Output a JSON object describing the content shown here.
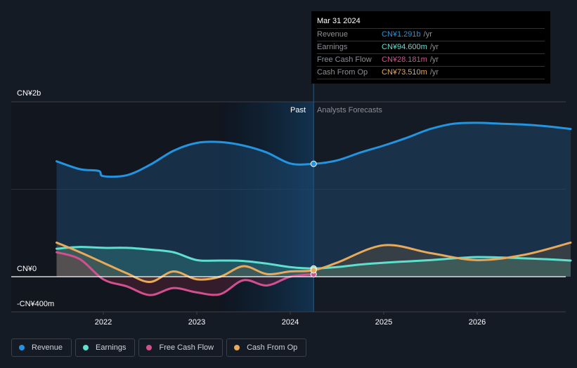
{
  "tooltip": {
    "date": "Mar 31 2024",
    "rows": [
      {
        "label": "Revenue",
        "value": "CN¥1.291b",
        "unit": "/yr",
        "color": "#2394e0"
      },
      {
        "label": "Earnings",
        "value": "CN¥94.600m",
        "unit": "/yr",
        "color": "#5ee0cf"
      },
      {
        "label": "Free Cash Flow",
        "value": "CN¥28.181m",
        "unit": "/yr",
        "color": "#d2508f"
      },
      {
        "label": "Cash From Op",
        "value": "CN¥73.510m",
        "unit": "/yr",
        "color": "#e8a95a"
      }
    ]
  },
  "legend": [
    {
      "label": "Revenue",
      "color": "#2394e0"
    },
    {
      "label": "Earnings",
      "color": "#5ee0cf"
    },
    {
      "label": "Free Cash Flow",
      "color": "#d2508f"
    },
    {
      "label": "Cash From Op",
      "color": "#e8a95a"
    }
  ],
  "chart_data": {
    "type": "area",
    "title": "",
    "xlabel": "",
    "ylabel": "",
    "x_ticks": [
      "2022",
      "2023",
      "2024",
      "2025",
      "2026"
    ],
    "y_ticks": [
      "CN¥2b",
      "CN¥0",
      "-CN¥400m"
    ],
    "ylim": [
      -400,
      2000
    ],
    "xlim": [
      2021.25,
      2027.0
    ],
    "units": "CN¥ millions",
    "past_label": "Past",
    "forecast_label": "Analysts Forecasts",
    "divider_x": 2024.25,
    "highlight_start_x": 2023.25,
    "grid": true,
    "series": [
      {
        "name": "Revenue",
        "color": "#2394e0",
        "points": [
          [
            2021.5,
            1320
          ],
          [
            2021.75,
            1230
          ],
          [
            2021.95,
            1210
          ],
          [
            2022.0,
            1150
          ],
          [
            2022.25,
            1160
          ],
          [
            2022.5,
            1280
          ],
          [
            2022.75,
            1440
          ],
          [
            2023.0,
            1530
          ],
          [
            2023.25,
            1540
          ],
          [
            2023.5,
            1500
          ],
          [
            2023.75,
            1420
          ],
          [
            2024.0,
            1295
          ],
          [
            2024.25,
            1291
          ],
          [
            2024.5,
            1330
          ],
          [
            2024.75,
            1420
          ],
          [
            2025.0,
            1500
          ],
          [
            2025.25,
            1590
          ],
          [
            2025.5,
            1690
          ],
          [
            2025.75,
            1750
          ],
          [
            2026.0,
            1760
          ],
          [
            2026.25,
            1750
          ],
          [
            2026.5,
            1740
          ],
          [
            2026.75,
            1720
          ],
          [
            2027.0,
            1690
          ]
        ]
      },
      {
        "name": "Earnings",
        "color": "#5ee0cf",
        "points": [
          [
            2021.5,
            320
          ],
          [
            2021.75,
            340
          ],
          [
            2022.0,
            330
          ],
          [
            2022.25,
            330
          ],
          [
            2022.5,
            310
          ],
          [
            2022.75,
            280
          ],
          [
            2023.0,
            190
          ],
          [
            2023.25,
            185
          ],
          [
            2023.5,
            180
          ],
          [
            2023.75,
            150
          ],
          [
            2024.0,
            110
          ],
          [
            2024.25,
            94.6
          ],
          [
            2024.5,
            110
          ],
          [
            2024.75,
            140
          ],
          [
            2025.0,
            160
          ],
          [
            2025.25,
            175
          ],
          [
            2025.5,
            190
          ],
          [
            2025.75,
            210
          ],
          [
            2026.0,
            225
          ],
          [
            2026.25,
            220
          ],
          [
            2026.5,
            210
          ],
          [
            2026.75,
            200
          ],
          [
            2027.0,
            185
          ]
        ]
      },
      {
        "name": "Free Cash Flow",
        "color": "#d2508f",
        "points": [
          [
            2021.5,
            280
          ],
          [
            2021.75,
            200
          ],
          [
            2022.0,
            -30
          ],
          [
            2022.25,
            -110
          ],
          [
            2022.5,
            -210
          ],
          [
            2022.75,
            -130
          ],
          [
            2023.0,
            -180
          ],
          [
            2023.25,
            -200
          ],
          [
            2023.5,
            -40
          ],
          [
            2023.75,
            -100
          ],
          [
            2024.0,
            0
          ],
          [
            2024.25,
            28.181
          ]
        ]
      },
      {
        "name": "Cash From Op",
        "color": "#e8a95a",
        "points": [
          [
            2021.5,
            390
          ],
          [
            2021.75,
            280
          ],
          [
            2022.0,
            160
          ],
          [
            2022.25,
            40
          ],
          [
            2022.5,
            -60
          ],
          [
            2022.75,
            60
          ],
          [
            2023.0,
            -30
          ],
          [
            2023.25,
            0
          ],
          [
            2023.5,
            120
          ],
          [
            2023.75,
            30
          ],
          [
            2024.0,
            60
          ],
          [
            2024.25,
            73.51
          ],
          [
            2024.5,
            160
          ],
          [
            2025.0,
            360
          ],
          [
            2025.5,
            270
          ],
          [
            2026.0,
            190
          ],
          [
            2026.5,
            250
          ],
          [
            2027.0,
            390
          ]
        ]
      }
    ]
  }
}
